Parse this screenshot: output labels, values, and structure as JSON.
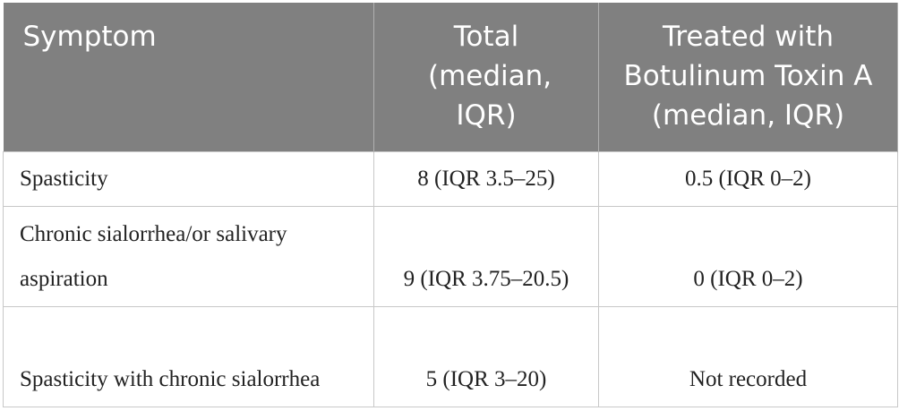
{
  "table": {
    "header": [
      "Symptom",
      "Total (median, IQR)",
      "Treated with Botulinum Toxin A (median, IQR)"
    ],
    "rows": [
      [
        "Spasticity",
        "8 (IQR 3.5–25)",
        "0.5 (IQR 0–2)"
      ],
      [
        "Chronic sialorrhea/or salivary aspiration",
        "9 (IQR 3.75–20.5)",
        "0 (IQR 0–2)"
      ],
      [
        "Spasticity with chronic sialorrhea",
        "5 (IQR 3–20)",
        "Not recorded"
      ]
    ]
  }
}
